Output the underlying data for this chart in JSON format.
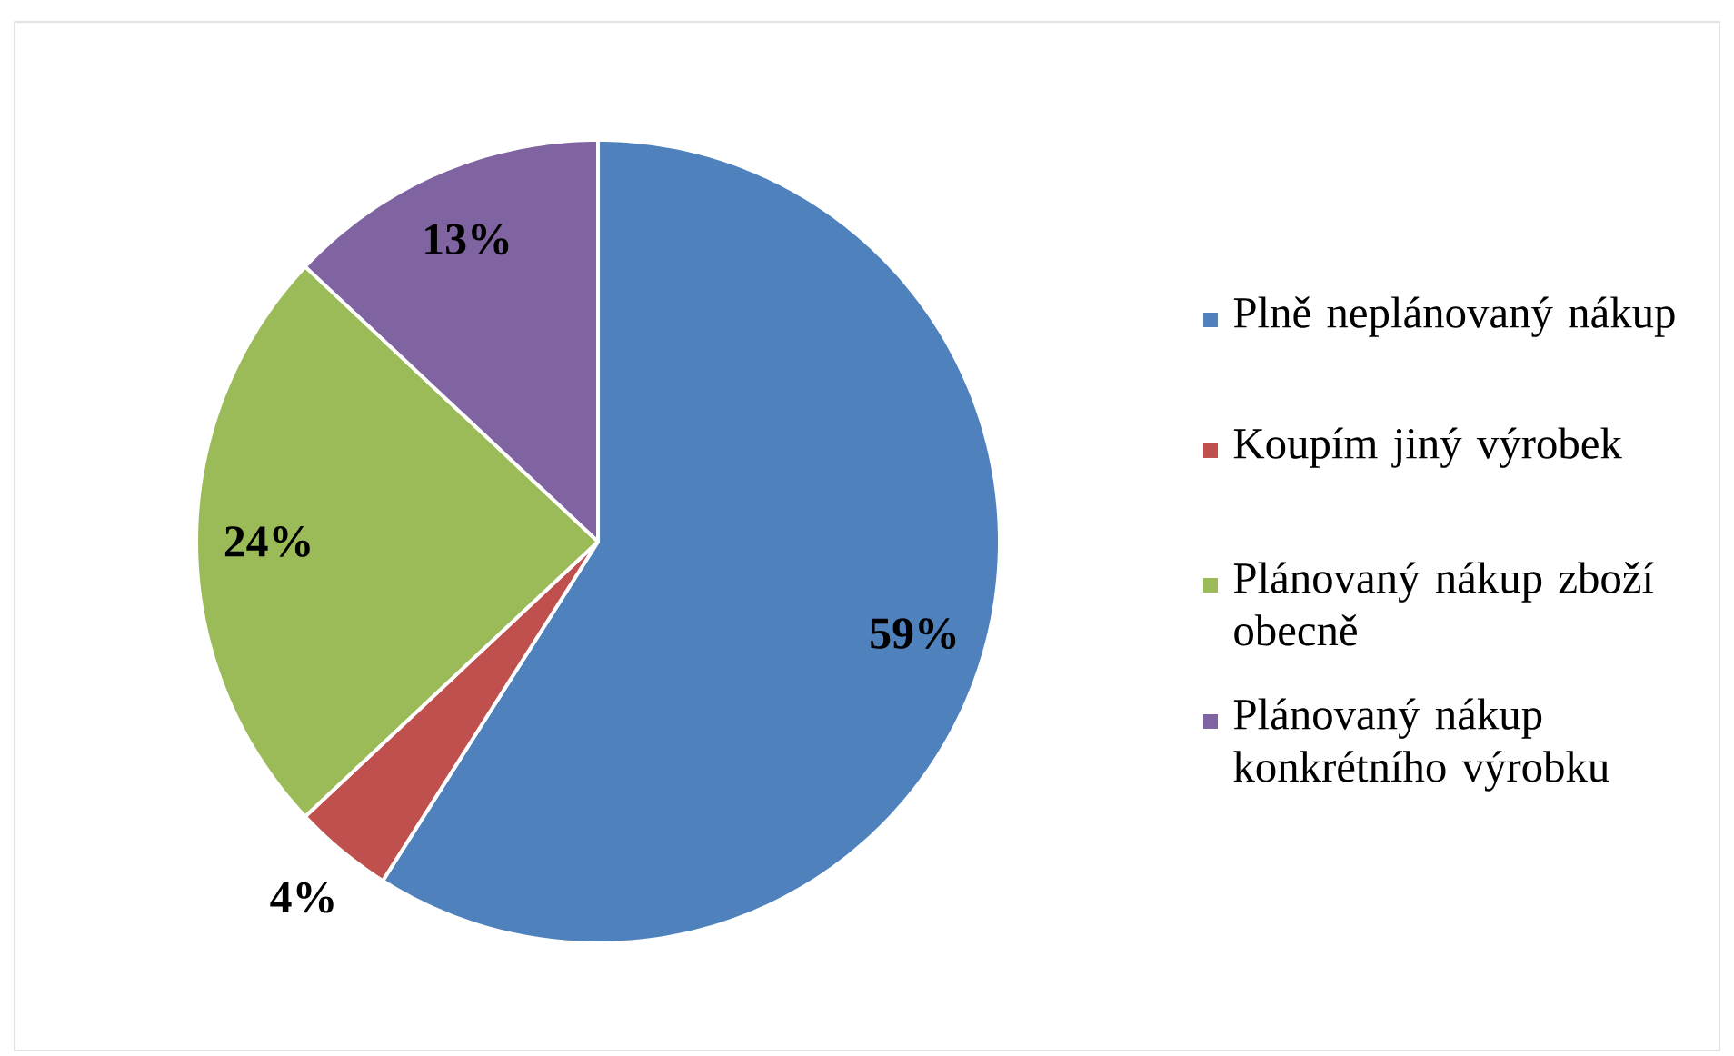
{
  "chart_data": {
    "type": "pie",
    "categories": [
      "Plně neplánovaný nákup",
      "Koupím jiný výrobek",
      "Plánovaný nákup zboží obecně",
      "Plánovaný nákup konkrétního výrobku"
    ],
    "values": [
      59,
      4,
      24,
      13
    ],
    "colors": [
      "#4f81bd",
      "#c0504d",
      "#9bbb59",
      "#8064a2"
    ],
    "value_labels": [
      "59%",
      "4%",
      "24%",
      "13%"
    ],
    "legend": "right"
  }
}
